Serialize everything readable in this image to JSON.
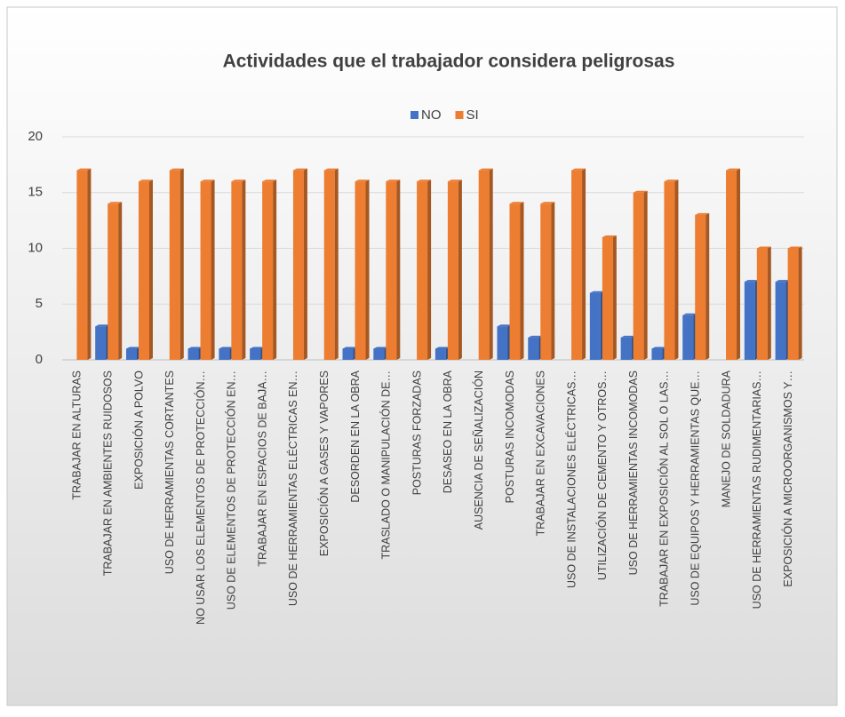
{
  "chart_data": {
    "type": "bar",
    "title": "Actividades que el trabajador considera peligrosas",
    "categories": [
      "TRABAJAR EN ALTURAS",
      "TRABAJAR EN AMBIENTES RUIDOSOS",
      "EXPOSICIÓN A POLVO",
      "USO DE HERRAMIENTAS CORTANTES",
      "NO USAR LOS ELEMENTOS DE PROTECCIÓN…",
      "USO DE ELEMENTOS DE PROTECCIÓN EN…",
      "TRABAJAR EN ESPACIOS DE BAJA…",
      "USO DE HERRAMIENTAS ELÉCTRICAS EN…",
      "EXPOSICIÓN A GASES Y VAPORES",
      "DESORDEN EN LA OBRA",
      "TRASLADO O MANIPULACIÓN DE…",
      "POSTURAS FORZADAS",
      "DESASEO EN LA OBRA",
      "AUSENCIA DE SEÑALIZACIÓN",
      "POSTURAS INCOMODAS",
      "TRABAJAR EN EXCAVACIONES",
      "USO DE INSTALACIONES ELÉCTRICAS…",
      "UTILIZACIÓN DE CEMENTO Y OTROS…",
      "USO DE HERRAMIENTAS INCOMODAS",
      "TRABAJAR EN EXPOSICIÓN AL SOL O LAS…",
      "USO DE EQUIPOS Y HERRAMIENTAS QUE…",
      "MANEJO DE SOLDADURA",
      "USO DE HERRAMIENTAS RUDIMENTARIAS…",
      "EXPOSICIÓN A MICROORGANISMOS Y…"
    ],
    "series": [
      {
        "name": "NO",
        "color": "#4472c4",
        "values": [
          0,
          3,
          1,
          0,
          1,
          1,
          1,
          0,
          0,
          1,
          1,
          0,
          1,
          0,
          3,
          2,
          0,
          6,
          2,
          1,
          4,
          0,
          7,
          7
        ]
      },
      {
        "name": "SI",
        "color": "#ed7d31",
        "values": [
          17,
          14,
          16,
          17,
          16,
          16,
          16,
          17,
          17,
          16,
          16,
          16,
          16,
          17,
          14,
          14,
          17,
          11,
          15,
          16,
          13,
          17,
          10,
          10
        ]
      }
    ],
    "ylim": [
      0,
      20
    ],
    "yticks": [
      0,
      5,
      10,
      15,
      20
    ],
    "grid": true,
    "legend": "top"
  }
}
